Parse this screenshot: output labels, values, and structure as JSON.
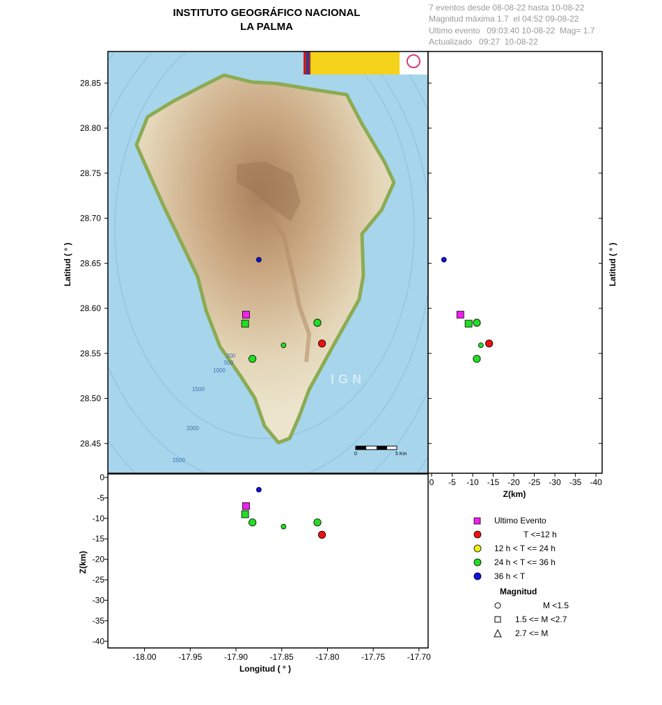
{
  "header": {
    "title_line1": "INSTITUTO GEOGRÁFICO NACIONAL",
    "title_line2": "LA PALMA",
    "info_lines": [
      "7 eventos desde 08-08-22 hasta 10-08-22",
      "Magnitud máxima 1.7  el 04:52 09-08-22",
      "Ultimo evento   09:03:40 10-08-22  Mag= 1.7",
      "Actualizado   09:27  10-08-22"
    ]
  },
  "map_labels": {
    "watermark": "IGN",
    "scale_start": "0",
    "scale_end": "5 Km",
    "depth_contours": [
      "200",
      "500",
      "1000",
      "1500",
      "2000",
      "2500"
    ]
  },
  "colors": {
    "ultimo_evento": "#ee22ee",
    "t_le_12h": "#ee1111",
    "t_12_24h": "#eeee11",
    "t_24_36h": "#22dd22",
    "t_gt_36h": "#1111dd",
    "sea": "#a6d5ec",
    "land_low": "#e8dcc0",
    "land_high": "#b58d6a",
    "coast": "#8cab52"
  },
  "legend": {
    "entries": [
      {
        "marker": "square",
        "color_key": "ultimo_evento",
        "label": "Ultimo Evento"
      },
      {
        "marker": "circle",
        "color_key": "t_le_12h",
        "label": "T <=12 h"
      },
      {
        "marker": "circle",
        "color_key": "t_12_24h",
        "label": "12 h  < T <= 24 h"
      },
      {
        "marker": "circle",
        "color_key": "t_24_36h",
        "label": "24 h  < T <= 36 h"
      },
      {
        "marker": "circle",
        "color_key": "t_gt_36h",
        "label": "36 h <  T"
      }
    ],
    "magnitude_title": "Magnitud",
    "magnitude_entries": [
      {
        "marker": "circle",
        "label": "M <1.5"
      },
      {
        "marker": "square",
        "label": "1.5 <= M <2.7"
      },
      {
        "marker": "triangle",
        "label": "2.7 <= M"
      }
    ]
  },
  "chart_data": [
    {
      "type": "scatter",
      "title": "LA PALMA",
      "xlabel": "",
      "ylabel": "Latitud ( ° )",
      "xlim": [
        -18.04,
        -17.69
      ],
      "ylim": [
        28.417,
        28.885
      ],
      "yticks": [
        "28.45",
        "28.50",
        "28.55",
        "28.60",
        "28.65",
        "28.70",
        "28.75",
        "28.80",
        "28.85"
      ],
      "points": [
        {
          "lon": -17.875,
          "lat": 28.654,
          "depth": 3,
          "color": "t_gt_36h",
          "marker": "circle-small"
        },
        {
          "lon": -17.889,
          "lat": 28.593,
          "depth": 7,
          "color": "ultimo_evento",
          "marker": "square"
        },
        {
          "lon": -17.89,
          "lat": 28.583,
          "depth": 9,
          "color": "t_24_36h",
          "marker": "square"
        },
        {
          "lon": -17.811,
          "lat": 28.584,
          "depth": 11,
          "color": "t_24_36h",
          "marker": "circle"
        },
        {
          "lon": -17.806,
          "lat": 28.561,
          "depth": 14,
          "color": "t_le_12h",
          "marker": "circle"
        },
        {
          "lon": -17.848,
          "lat": 28.559,
          "depth": 12,
          "color": "t_24_36h",
          "marker": "circle-small"
        },
        {
          "lon": -17.882,
          "lat": 28.544,
          "depth": 11,
          "color": "t_24_36h",
          "marker": "circle"
        }
      ]
    },
    {
      "type": "scatter",
      "xlabel": "Z(km)",
      "ylabel": "Latitud ( ° )",
      "xticks": [
        "0",
        "-5",
        "-10",
        "-15",
        "-20",
        "-25",
        "-30",
        "-35",
        "-40"
      ],
      "xlim": [
        0,
        -41.5
      ]
    },
    {
      "type": "scatter",
      "xlabel": "Longitud ( ° )",
      "ylabel": "Z(km)",
      "xticks": [
        "-18.00",
        "-17.95",
        "-17.90",
        "-17.85",
        "-17.80",
        "-17.75",
        "-17.70"
      ],
      "yticks": [
        "0",
        "-5",
        "-10",
        "-15",
        "-20",
        "-25",
        "-30",
        "-35",
        "-40"
      ],
      "ylim": [
        0,
        -40.8
      ]
    }
  ]
}
